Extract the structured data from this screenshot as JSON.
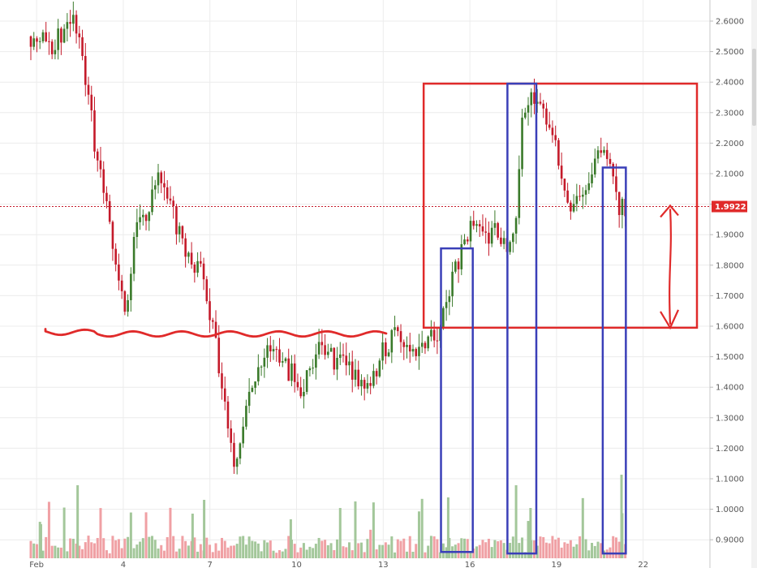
{
  "chart_data": {
    "type": "candlestick",
    "x_ticks": [
      "Feb",
      "4",
      "7",
      "10",
      "13",
      "16",
      "19",
      "22"
    ],
    "y_ticks": [
      "2.6000",
      "2.5000",
      "2.4000",
      "2.3000",
      "2.2000",
      "2.1000",
      "2.0000",
      "1.9000",
      "1.8000",
      "1.7000",
      "1.6000",
      "1.5000",
      "1.4000",
      "1.3000",
      "1.2000",
      "1.1000",
      "1.0000",
      "0.9000"
    ],
    "ylim": [
      0.85,
      2.68
    ],
    "x_range": [
      0,
      22.8
    ],
    "current_price": 1.9922,
    "current_price_label": "1.9922",
    "grid": true,
    "colors": {
      "up": "#3a7a2a",
      "down": "#c41a2a",
      "volume_up": "#a3c79a",
      "volume_down": "#f0a0a4",
      "annotation_red": "#e02a2a",
      "annotation_blue": "#3a3fb8",
      "price_tag": "#e02a2a"
    },
    "candle_anchors": [
      [
        0.2,
        2.55
      ],
      [
        0.7,
        2.52
      ],
      [
        1.2,
        2.57
      ],
      [
        1.5,
        2.59
      ],
      [
        1.9,
        2.42
      ],
      [
        2.2,
        2.2
      ],
      [
        2.6,
        2.02
      ],
      [
        2.9,
        1.85
      ],
      [
        3.3,
        1.6
      ],
      [
        3.6,
        1.93
      ],
      [
        4.0,
        1.96
      ],
      [
        4.4,
        2.09
      ],
      [
        4.8,
        2.02
      ],
      [
        5.2,
        1.88
      ],
      [
        5.6,
        1.82
      ],
      [
        6.0,
        1.75
      ],
      [
        6.4,
        1.55
      ],
      [
        6.7,
        1.35
      ],
      [
        7.1,
        1.12
      ],
      [
        7.4,
        1.3
      ],
      [
        7.8,
        1.45
      ],
      [
        8.2,
        1.52
      ],
      [
        8.6,
        1.48
      ],
      [
        9.0,
        1.45
      ],
      [
        9.4,
        1.38
      ],
      [
        9.8,
        1.51
      ],
      [
        10.2,
        1.52
      ],
      [
        10.6,
        1.48
      ],
      [
        11.0,
        1.47
      ],
      [
        11.4,
        1.42
      ],
      [
        11.8,
        1.43
      ],
      [
        12.2,
        1.52
      ],
      [
        12.6,
        1.57
      ],
      [
        13.0,
        1.54
      ],
      [
        13.4,
        1.52
      ],
      [
        13.8,
        1.55
      ],
      [
        14.2,
        1.6
      ],
      [
        14.6,
        1.78
      ],
      [
        15.0,
        1.86
      ],
      [
        15.3,
        1.97
      ],
      [
        15.6,
        1.88
      ],
      [
        16.0,
        1.92
      ],
      [
        16.3,
        1.86
      ],
      [
        16.5,
        1.85
      ],
      [
        16.8,
        1.95
      ],
      [
        17.0,
        2.28
      ],
      [
        17.2,
        2.36
      ],
      [
        17.5,
        2.35
      ],
      [
        17.8,
        2.27
      ],
      [
        18.1,
        2.23
      ],
      [
        18.4,
        2.05
      ],
      [
        18.7,
        2.0
      ],
      [
        19.0,
        2.02
      ],
      [
        19.4,
        2.12
      ],
      [
        19.8,
        2.17
      ],
      [
        20.1,
        2.1
      ],
      [
        20.4,
        1.98
      ],
      [
        20.6,
        1.99
      ]
    ],
    "annotations": {
      "red_box": {
        "x": [
          13.6,
          23.8
        ],
        "y": [
          1.595,
          2.395
        ]
      },
      "blue_boxes": [
        {
          "x": [
            14.2,
            15.3
          ],
          "y": [
            0.86,
            1.855
          ]
        },
        {
          "x": [
            16.5,
            17.5
          ],
          "y": [
            0.855,
            2.395
          ]
        },
        {
          "x": [
            19.8,
            20.6
          ],
          "y": [
            0.855,
            2.12
          ]
        }
      ],
      "support_line_level": 1.58,
      "arrow": {
        "x": 22.95,
        "y": [
          1.595,
          1.995
        ]
      }
    }
  }
}
